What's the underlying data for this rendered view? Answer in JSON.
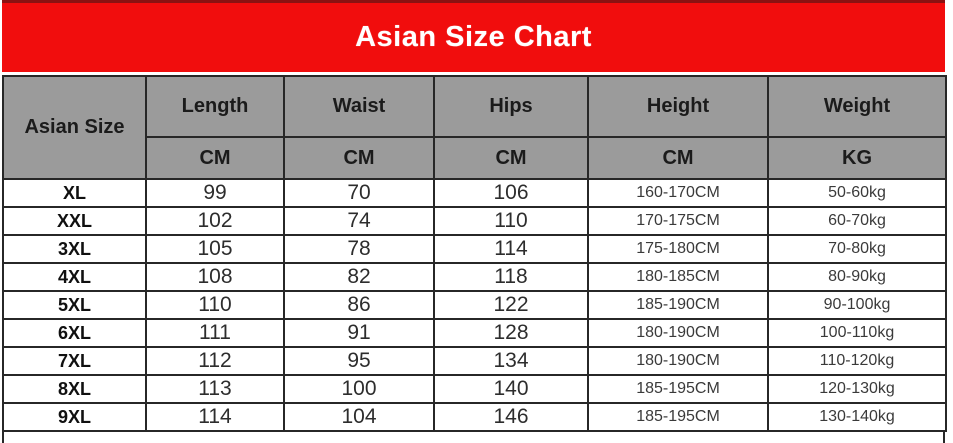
{
  "colors": {
    "banner_background": "#f10d0d",
    "banner_text": "#ffffff",
    "header_background": "#9b9b9b",
    "border": "#272727"
  },
  "chart_data": {
    "type": "table",
    "title": "Asian Size Chart",
    "size_column_header": "Asian Size",
    "columns": [
      {
        "label": "Length",
        "unit": "CM"
      },
      {
        "label": "Waist",
        "unit": "CM"
      },
      {
        "label": "Hips",
        "unit": "CM"
      },
      {
        "label": "Height",
        "unit": "CM"
      },
      {
        "label": "Weight",
        "unit": "KG"
      }
    ],
    "rows": [
      {
        "size": "XL",
        "length": "99",
        "waist": "70",
        "hips": "106",
        "height": "160-170CM",
        "weight": "50-60kg"
      },
      {
        "size": "XXL",
        "length": "102",
        "waist": "74",
        "hips": "110",
        "height": "170-175CM",
        "weight": "60-70kg"
      },
      {
        "size": "3XL",
        "length": "105",
        "waist": "78",
        "hips": "114",
        "height": "175-180CM",
        "weight": "70-80kg"
      },
      {
        "size": "4XL",
        "length": "108",
        "waist": "82",
        "hips": "118",
        "height": "180-185CM",
        "weight": "80-90kg"
      },
      {
        "size": "5XL",
        "length": "110",
        "waist": "86",
        "hips": "122",
        "height": "185-190CM",
        "weight": "90-100kg"
      },
      {
        "size": "6XL",
        "length": "111",
        "waist": "91",
        "hips": "128",
        "height": "180-190CM",
        "weight": "100-110kg"
      },
      {
        "size": "7XL",
        "length": "112",
        "waist": "95",
        "hips": "134",
        "height": "180-190CM",
        "weight": "110-120kg"
      },
      {
        "size": "8XL",
        "length": "113",
        "waist": "100",
        "hips": "140",
        "height": "185-195CM",
        "weight": "120-130kg"
      },
      {
        "size": "9XL",
        "length": "114",
        "waist": "104",
        "hips": "146",
        "height": "185-195CM",
        "weight": "130-140kg"
      }
    ]
  }
}
